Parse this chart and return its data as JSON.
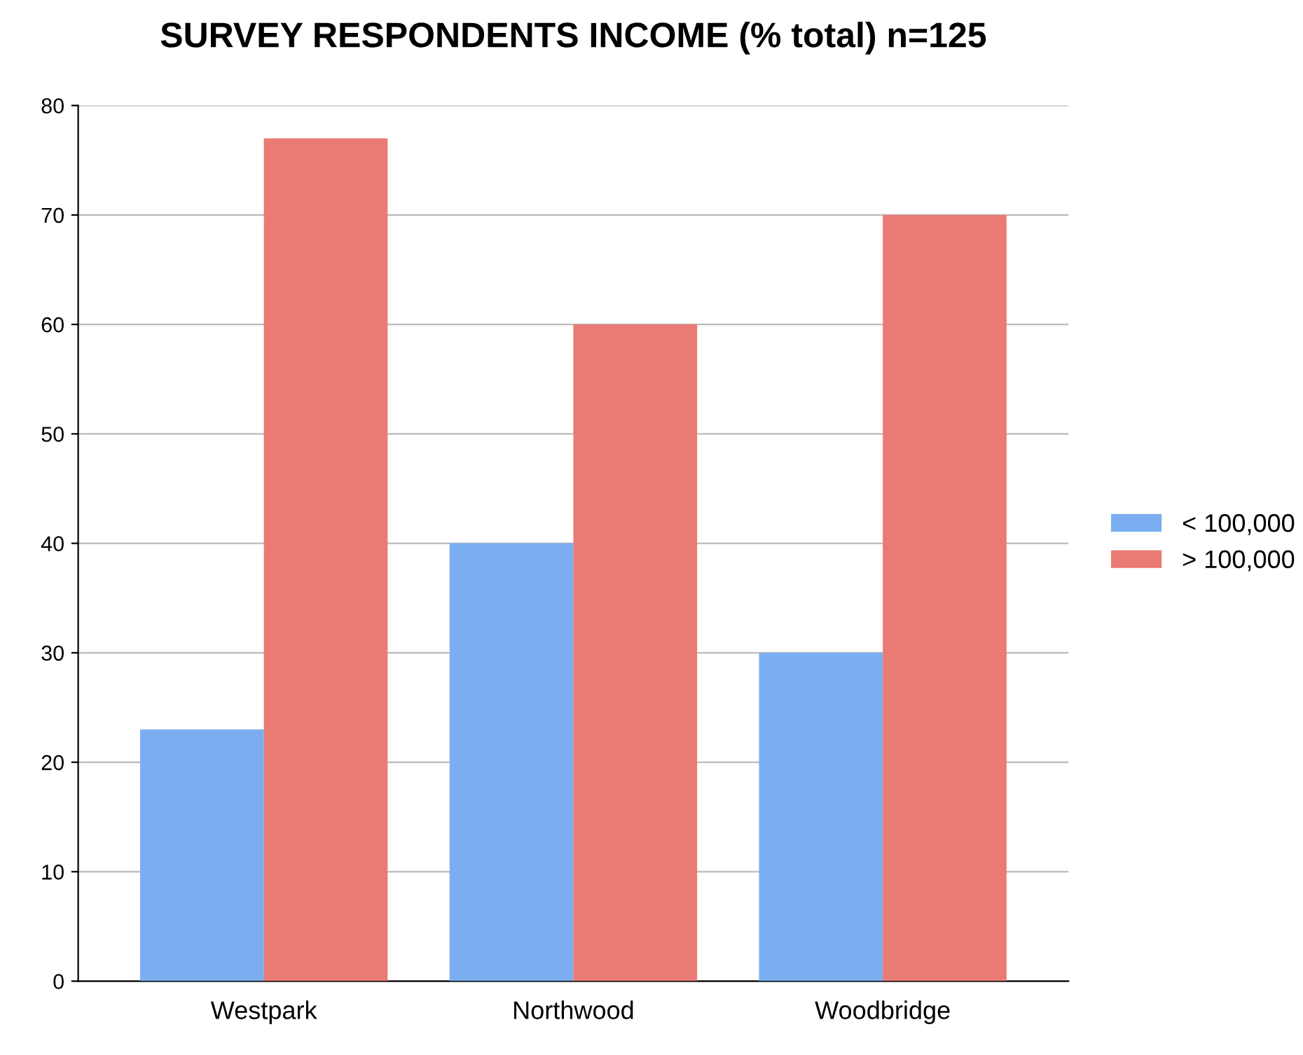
{
  "chart_data": {
    "type": "bar",
    "title": "SURVEY RESPONDENTS INCOME (% total) n=125",
    "categories": [
      "Westpark",
      "Northwood",
      "Woodbridge"
    ],
    "series": [
      {
        "name": "< 100,000",
        "color": "#7aaef0",
        "values": [
          23,
          40,
          30
        ]
      },
      {
        "name": "> 100,000",
        "color": "#ea7a74",
        "values": [
          77,
          60,
          70
        ]
      }
    ],
    "ylim": [
      0,
      80
    ],
    "yticks": [
      0,
      10,
      20,
      30,
      40,
      50,
      60,
      70,
      80
    ],
    "grid": "y",
    "legend": "right"
  }
}
